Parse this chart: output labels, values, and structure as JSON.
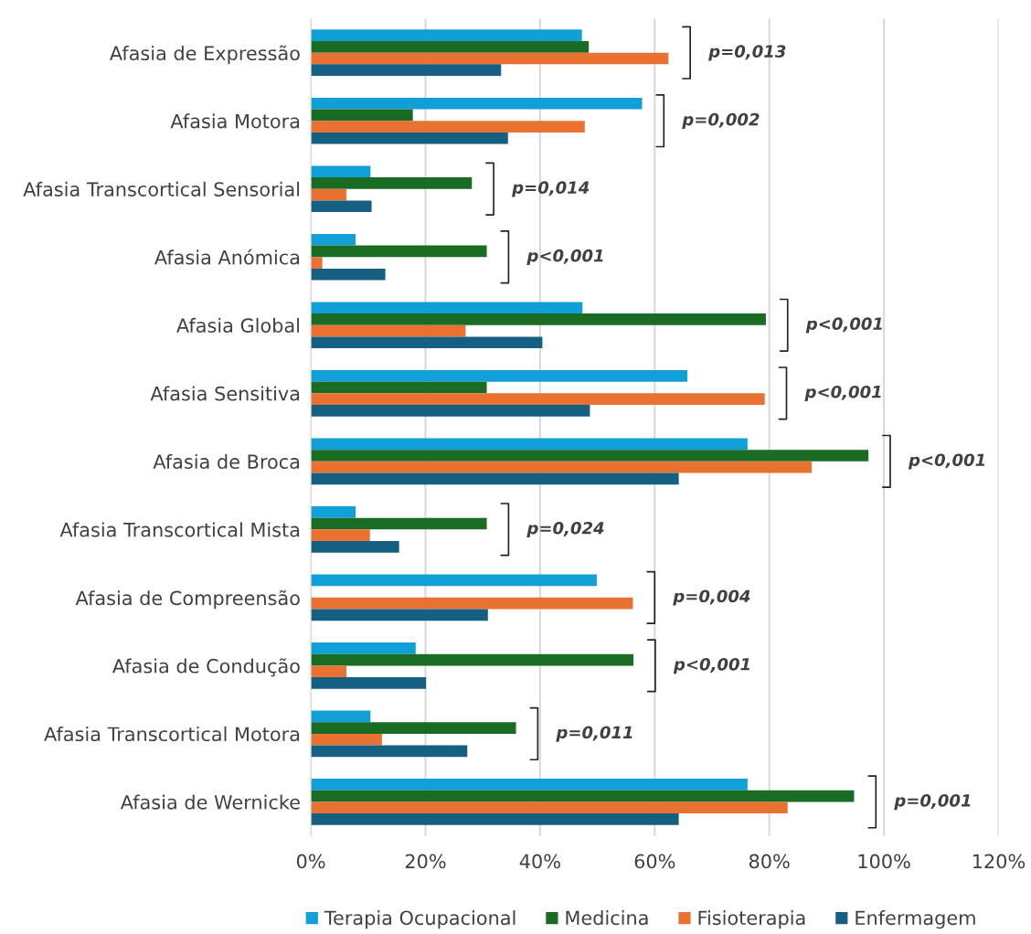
{
  "chart_data": {
    "type": "bar",
    "orientation": "horizontal",
    "categories": [
      "Afasia de Expressão",
      "Afasia Motora",
      "Afasia Transcortical Sensorial",
      "Afasia Anómica",
      "Afasia Global",
      "Afasia Sensitiva",
      "Afasia de Broca",
      "Afasia Transcortical Mista",
      "Afasia de Compreensão",
      "Afasia de Condução",
      "Afasia Transcortical Motora",
      "Afasia de Wernicke"
    ],
    "series": [
      {
        "name": "Terapia Ocupacional",
        "color": "#119fd8",
        "values": [
          47.3,
          57.8,
          10.4,
          7.8,
          47.4,
          65.7,
          76.2,
          7.8,
          49.9,
          18.3,
          10.4,
          76.2
        ]
      },
      {
        "name": "Medicina",
        "color": "#1a6b23",
        "values": [
          48.5,
          17.8,
          28.1,
          30.7,
          79.4,
          30.7,
          97.3,
          30.7,
          0,
          56.3,
          35.8,
          94.8
        ]
      },
      {
        "name": "Fisioterapia",
        "color": "#e97132",
        "values": [
          62.4,
          47.8,
          6.2,
          2.0,
          27.0,
          79.2,
          87.4,
          10.3,
          56.2,
          6.2,
          12.4,
          83.2
        ]
      },
      {
        "name": "Enfermagem",
        "color": "#156082",
        "values": [
          33.2,
          34.4,
          10.6,
          13.0,
          40.4,
          48.7,
          64.2,
          15.4,
          30.9,
          20.1,
          27.3,
          64.2
        ]
      }
    ],
    "xlim": [
      0,
      120
    ],
    "xticks": [
      {
        "value": 0,
        "label": "0%"
      },
      {
        "value": 20,
        "label": "20%"
      },
      {
        "value": 40,
        "label": "40%"
      },
      {
        "value": 60,
        "label": "60%"
      },
      {
        "value": 80,
        "label": "80%"
      },
      {
        "value": 100,
        "label": "100%"
      },
      {
        "value": 120,
        "label": "120%"
      }
    ],
    "grid": "x",
    "legend": "bottom",
    "annotations": [
      "p=0,013",
      "p=0,002",
      "p=0,014",
      "p<0,001",
      "p<0,001",
      "p<0,001",
      "p<0,001",
      "p=0,024",
      "p=0,004",
      "p<0,001",
      "p=0,011",
      "p=0,001"
    ]
  }
}
